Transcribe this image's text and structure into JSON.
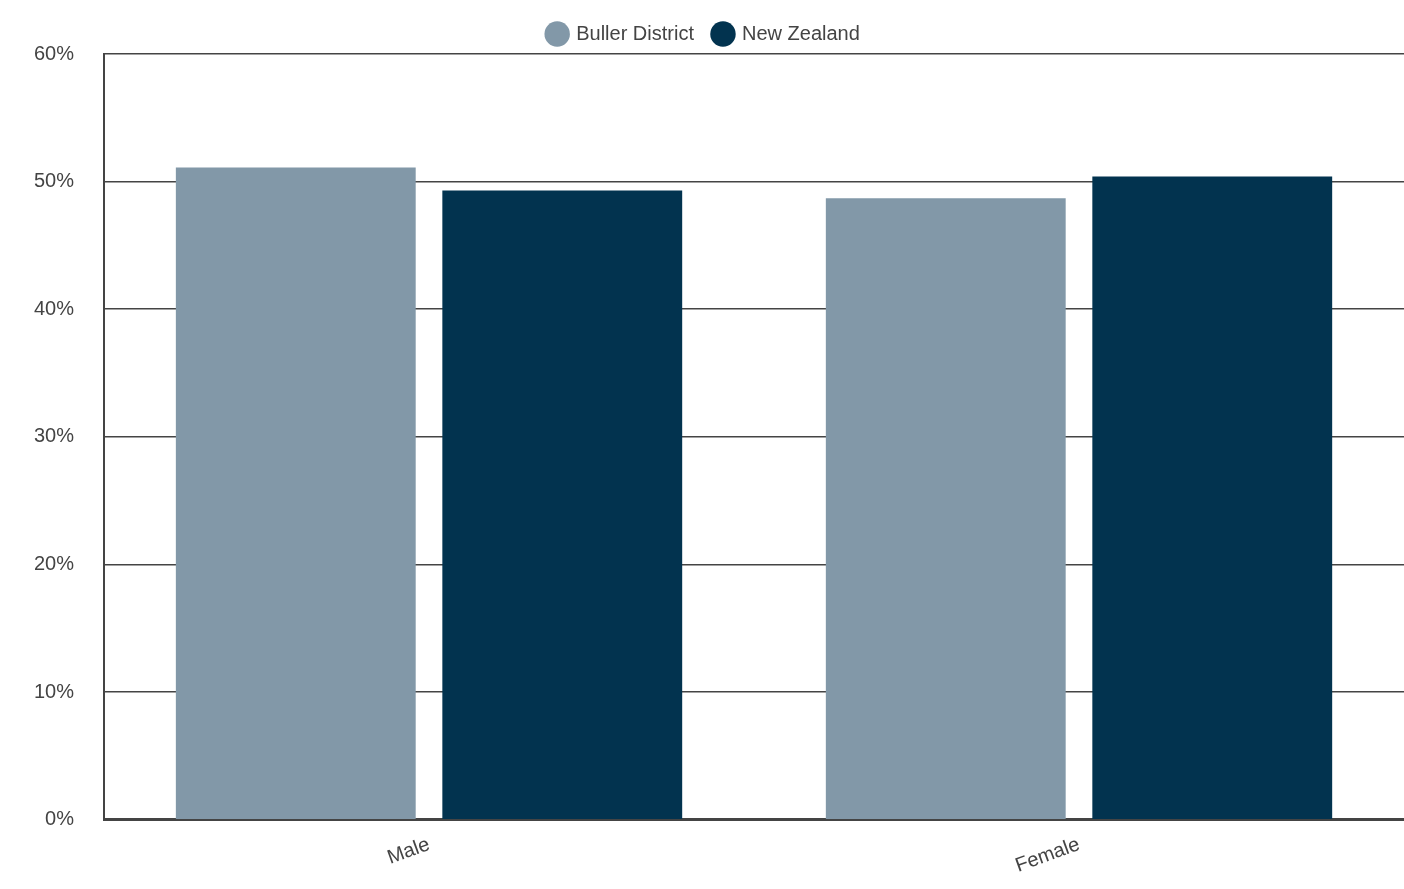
{
  "chart_data": {
    "type": "bar",
    "categories": [
      "Male",
      "Female"
    ],
    "series": [
      {
        "name": "Buller District",
        "color": "#8298a8",
        "values": [
          51.1,
          48.7
        ]
      },
      {
        "name": "New Zealand",
        "color": "#02334f",
        "values": [
          49.3,
          50.4
        ]
      }
    ],
    "ylim": [
      0,
      60
    ],
    "yticks": [
      {
        "value": 0,
        "label": "0%"
      },
      {
        "value": 10,
        "label": "10%"
      },
      {
        "value": 20,
        "label": "20%"
      },
      {
        "value": 30,
        "label": "30%"
      },
      {
        "value": 40,
        "label": "40%"
      },
      {
        "value": 50,
        "label": "50%"
      },
      {
        "value": 60,
        "label": "60%"
      }
    ],
    "grid": "y",
    "legend": "top"
  }
}
